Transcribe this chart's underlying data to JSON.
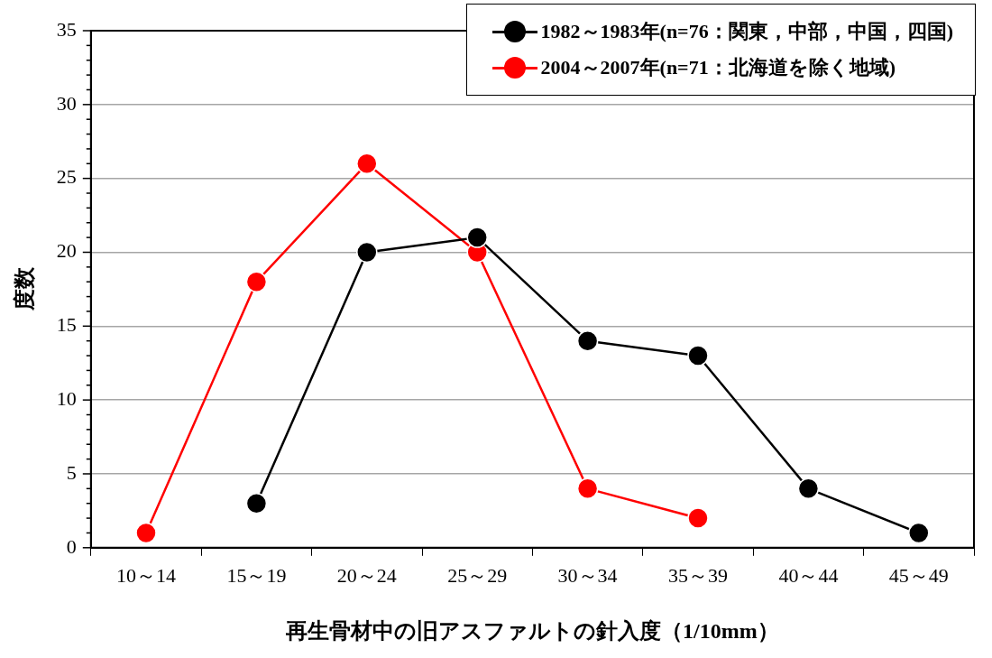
{
  "chart_data": {
    "type": "line",
    "xlabel": "再生骨材中の旧アスファルトの針入度（1/10mm）",
    "ylabel": "度数",
    "categories": [
      "10～14",
      "15～19",
      "20～24",
      "25～29",
      "30～34",
      "35～39",
      "40～44",
      "45～49"
    ],
    "series": [
      {
        "name": "1982～1983年(n=76：関東，中部，中国，四国)",
        "color": "#000000",
        "values": [
          null,
          3,
          20,
          21,
          14,
          13,
          4,
          1
        ]
      },
      {
        "name": "2004～2007年(n=71：北海道を除く地域)",
        "color": "#ff0000",
        "values": [
          1,
          18,
          26,
          20,
          4,
          2,
          null,
          null
        ]
      }
    ],
    "ylim": [
      0,
      35
    ],
    "yticks": [
      0,
      {
        "value": 1,
        "label": null
      },
      {
        "value": 2,
        "label": null
      },
      {
        "value": 3,
        "label": null
      },
      {
        "value": 4,
        "label": null
      },
      5,
      {
        "value": 6,
        "label": null
      },
      {
        "value": 7,
        "label": null
      },
      {
        "value": 8,
        "label": null
      },
      {
        "value": 9,
        "label": null
      },
      10,
      {
        "value": 11,
        "label": null
      },
      {
        "value": 12,
        "label": null
      },
      {
        "value": 13,
        "label": null
      },
      {
        "value": 14,
        "label": null
      },
      15,
      {
        "value": 16,
        "label": null
      },
      {
        "value": 17,
        "label": null
      },
      {
        "value": 18,
        "label": null
      },
      {
        "value": 19,
        "label": null
      },
      20,
      {
        "value": 21,
        "label": null
      },
      {
        "value": 22,
        "label": null
      },
      {
        "value": 23,
        "label": null
      },
      {
        "value": 24,
        "label": null
      },
      25,
      {
        "value": 26,
        "label": null
      },
      {
        "value": 27,
        "label": null
      },
      {
        "value": 28,
        "label": null
      },
      {
        "value": 29,
        "label": null
      },
      30,
      {
        "value": 31,
        "label": null
      },
      {
        "value": 32,
        "label": null
      },
      {
        "value": 33,
        "label": null
      },
      {
        "value": 34,
        "label": null
      },
      35
    ],
    "grid": "y",
    "legend": "top right",
    "marker": "circle",
    "line_style": "solid"
  }
}
